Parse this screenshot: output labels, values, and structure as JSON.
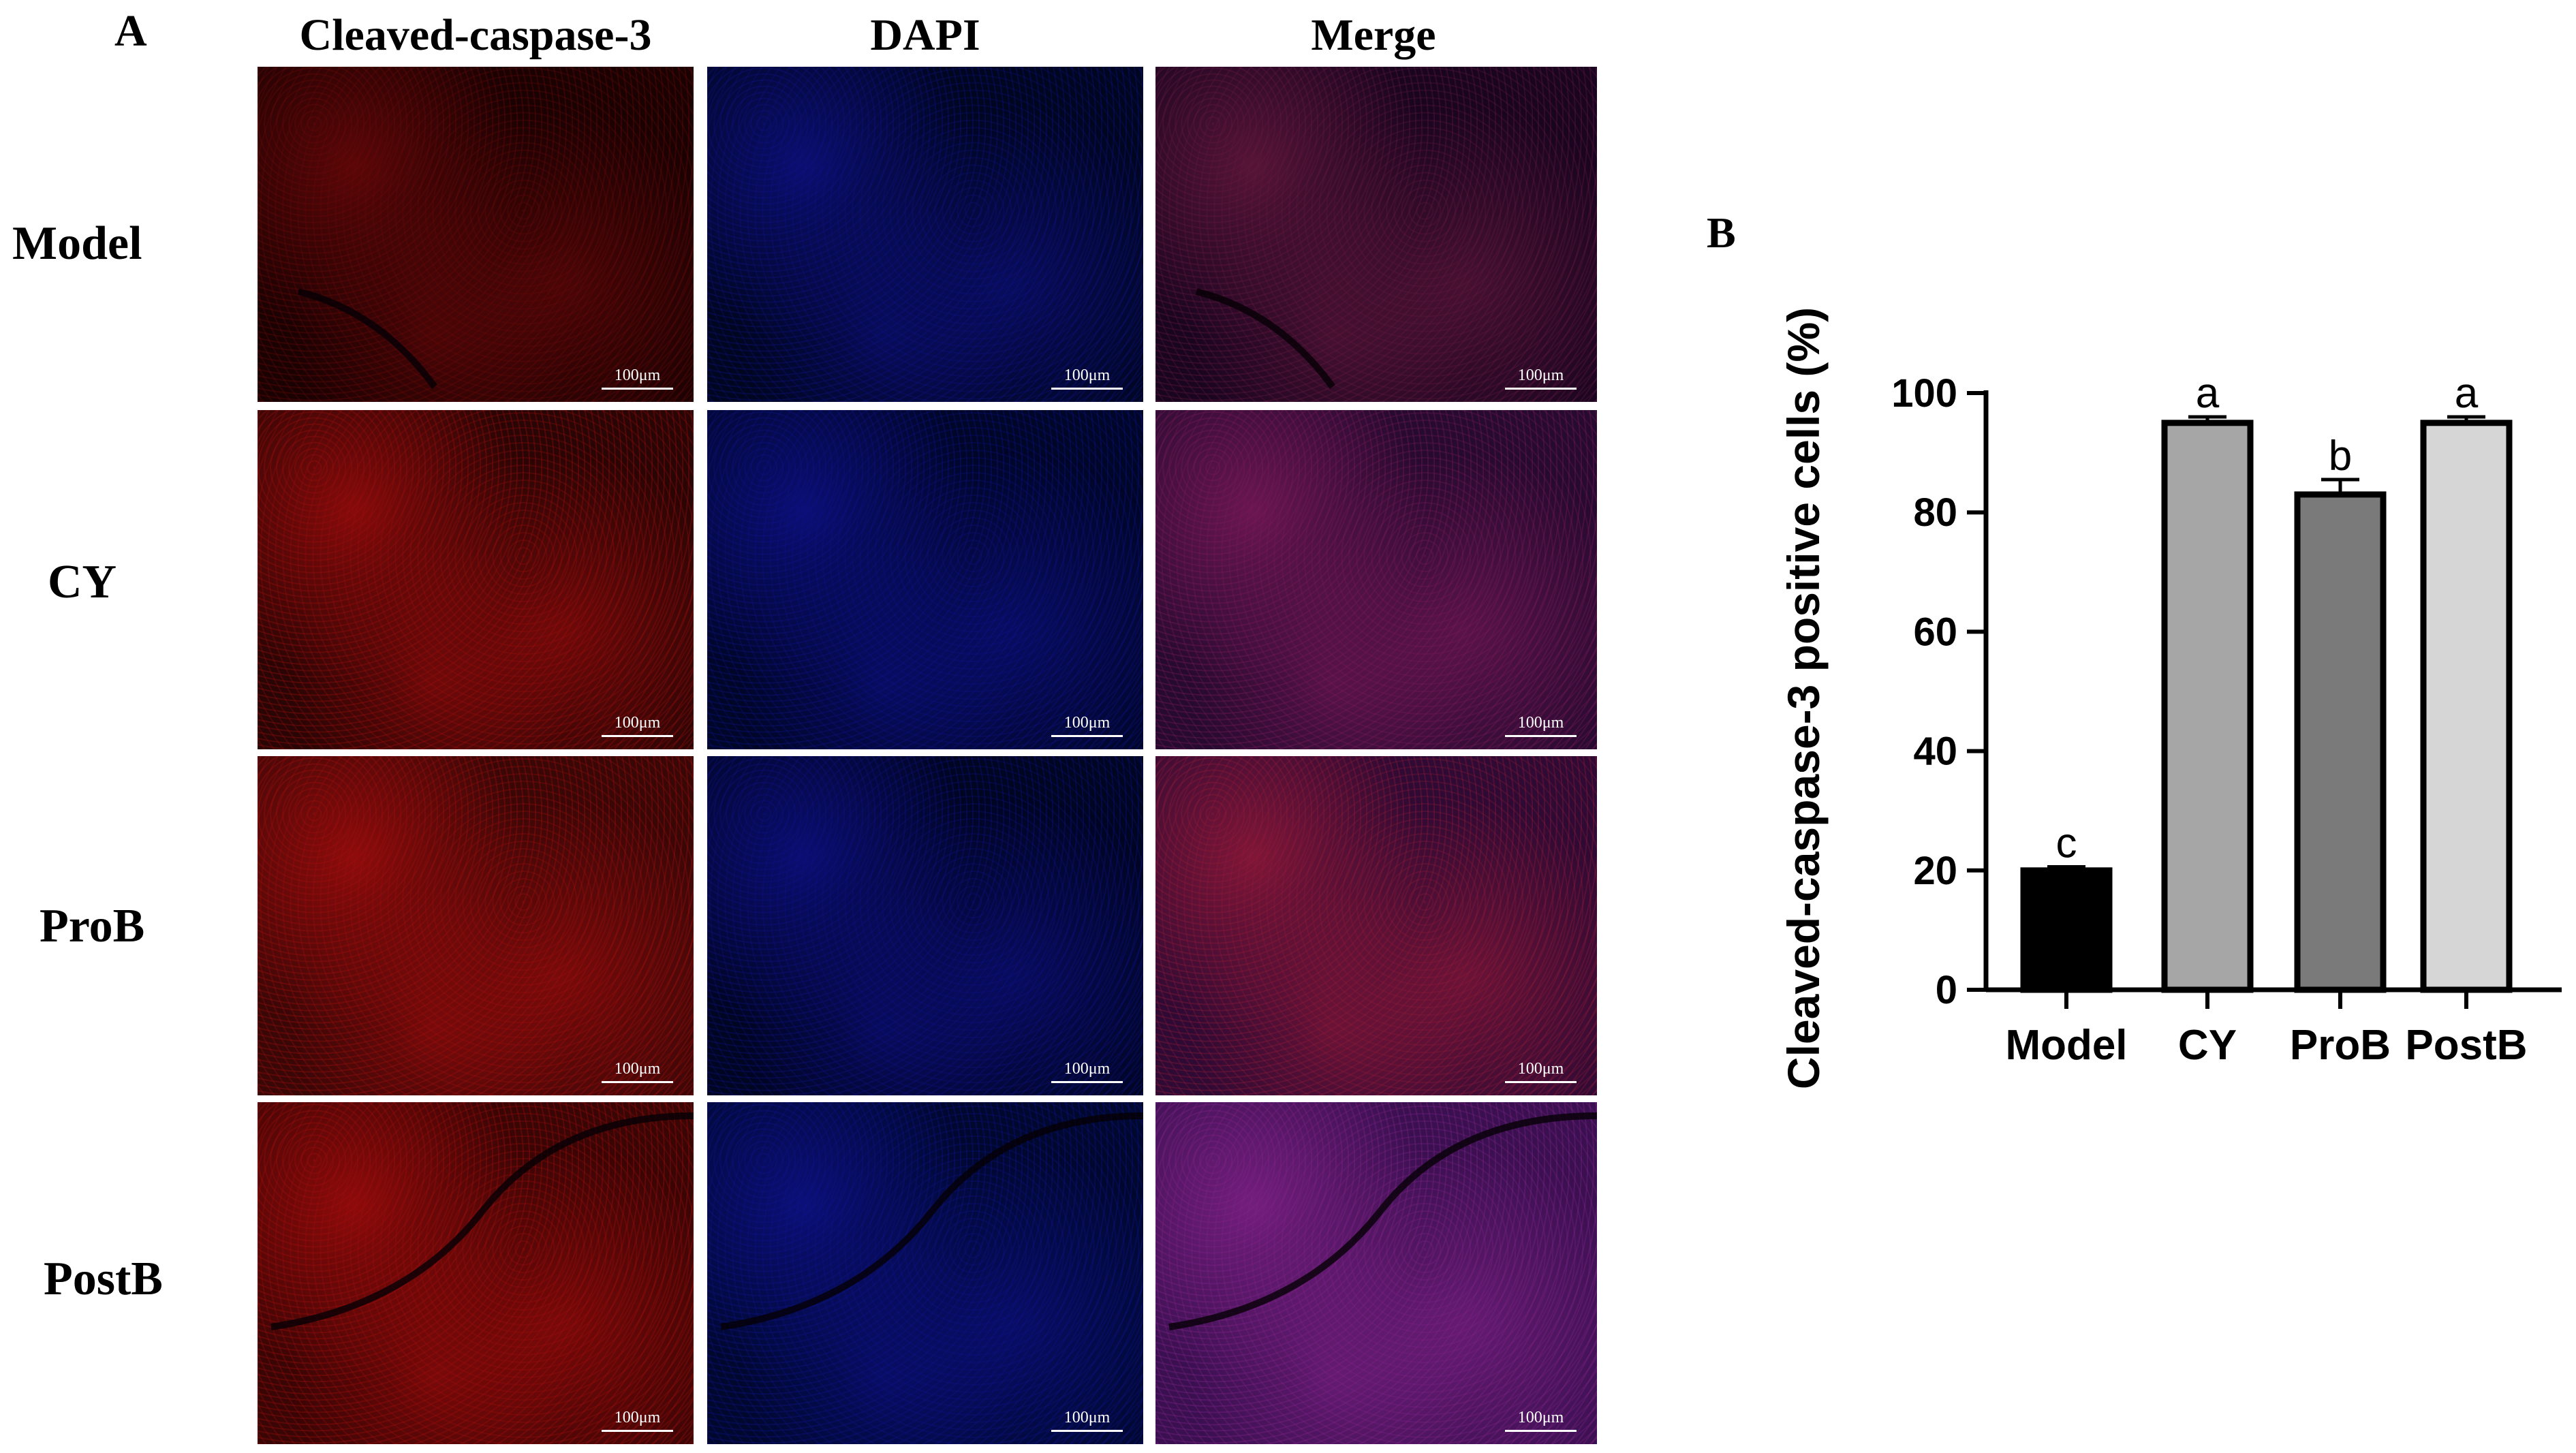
{
  "panel_a": {
    "letter": "A",
    "columns": [
      "Cleaved-caspase-3",
      "DAPI",
      "Merge"
    ],
    "rows": [
      "Model",
      "CY",
      "ProB",
      "PostB"
    ],
    "scale_bar": "100μm",
    "channel_colors": {
      "red": "#d01010",
      "blue": "#1a1ad8",
      "merge": "#7a1a9a"
    }
  },
  "panel_b": {
    "letter": "B"
  },
  "chart_data": {
    "type": "bar",
    "title": "",
    "xlabel": "",
    "ylabel": "Cleaved-caspase-3 positive cells (%)",
    "ylim": [
      0,
      100
    ],
    "yticks": [
      0,
      20,
      40,
      60,
      80,
      100
    ],
    "categories": [
      "Model",
      "CY",
      "ProB",
      "PostB"
    ],
    "values": [
      20,
      95,
      83,
      95
    ],
    "errors": [
      0.6,
      1.0,
      2.5,
      1.0
    ],
    "significance_letters": [
      "c",
      "a",
      "b",
      "a"
    ],
    "bar_colors": [
      "#000000",
      "#a6a6a6",
      "#7a7a7a",
      "#d6d6d6"
    ],
    "grid": false
  }
}
